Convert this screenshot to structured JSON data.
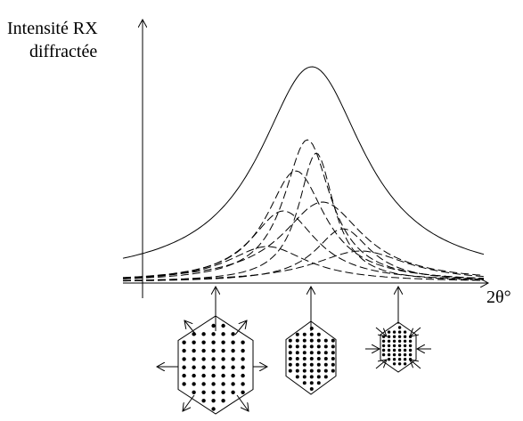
{
  "axis": {
    "y_label": [
      "Intensité RX",
      "diffractée"
    ],
    "x_label": "2θ°"
  }
}
